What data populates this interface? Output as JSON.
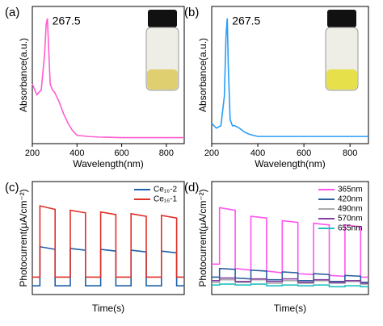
{
  "chart_data": [
    {
      "type": "line",
      "label": "(a)",
      "x_label": "Wavelength(nm)",
      "y_label": "Absorbance(a.u.)",
      "annotation": "267.5",
      "x": [
        200,
        220,
        240,
        255,
        262,
        267.5,
        272,
        280,
        290,
        300,
        320,
        340,
        360,
        380,
        400,
        450,
        500,
        600,
        700,
        800,
        880
      ],
      "series": [
        {
          "color": "#ff5ccf",
          "values": [
            0.45,
            0.36,
            0.4,
            0.7,
            0.95,
            1.0,
            0.8,
            0.45,
            0.4,
            0.38,
            0.3,
            0.2,
            0.12,
            0.06,
            0.02,
            0.01,
            0.005,
            0,
            0,
            0,
            0
          ]
        }
      ],
      "xlim": [
        200,
        880
      ],
      "ylim": [
        -0.05,
        1.1
      ],
      "xticks": [
        200,
        400,
        600,
        800
      ]
    },
    {
      "type": "line",
      "label": "(b)",
      "x_label": "Wavelength(nm)",
      "y_label": "Absorbance(a.u.)",
      "annotation": "267.5",
      "x": [
        200,
        220,
        240,
        255,
        262,
        267.5,
        272,
        280,
        290,
        300,
        320,
        340,
        360,
        380,
        400,
        450,
        500,
        600,
        700,
        800,
        880
      ],
      "series": [
        {
          "color": "#2a9df4",
          "values": [
            0.12,
            0.08,
            0.1,
            0.35,
            0.85,
            1.0,
            0.6,
            0.15,
            0.1,
            0.1,
            0.08,
            0.05,
            0.03,
            0.02,
            0.01,
            0.01,
            0.01,
            0.01,
            0.01,
            0.01,
            0.01
          ]
        }
      ],
      "xlim": [
        200,
        880
      ],
      "ylim": [
        -0.05,
        1.1
      ],
      "xticks": [
        200,
        400,
        600,
        800
      ]
    },
    {
      "type": "line",
      "label": "(c)",
      "x_label": "Time(s)",
      "y_label": "Photocurrent(μA/cm⁻²)",
      "legend": "upper right",
      "x": [
        0,
        5,
        5,
        15,
        15,
        25,
        25,
        35,
        35,
        45,
        45,
        55,
        55,
        65,
        65,
        75,
        75,
        85,
        85,
        95,
        95,
        100
      ],
      "series": [
        {
          "name": "Ce₁₆-2",
          "color": "#1f5fa8",
          "values": [
            0.1,
            0.1,
            0.55,
            0.52,
            0.1,
            0.1,
            0.53,
            0.51,
            0.1,
            0.1,
            0.52,
            0.5,
            0.1,
            0.1,
            0.51,
            0.49,
            0.1,
            0.1,
            0.5,
            0.48,
            0.1,
            0.1
          ]
        },
        {
          "name": "Ce₁₆-1",
          "color": "#e0302a",
          "values": [
            0.2,
            0.2,
            1.02,
            0.98,
            0.2,
            0.2,
            0.97,
            0.94,
            0.2,
            0.2,
            0.95,
            0.92,
            0.2,
            0.2,
            0.93,
            0.9,
            0.2,
            0.2,
            0.91,
            0.88,
            0.2,
            0.2
          ]
        }
      ],
      "xlim": [
        0,
        100
      ],
      "ylim": [
        0,
        1.3
      ]
    },
    {
      "type": "line",
      "label": "(d)",
      "x_label": "Time(s)",
      "y_label": "Photocurrent(μA/cm⁻²)",
      "legend": "upper right",
      "x": [
        0,
        5,
        5,
        15,
        15,
        25,
        25,
        35,
        35,
        45,
        45,
        55,
        55,
        65,
        65,
        75,
        75,
        85,
        85,
        95,
        95,
        100
      ],
      "series": [
        {
          "name": "365nm",
          "color": "#ff55ee",
          "values": [
            0.35,
            0.35,
            1.0,
            0.97,
            0.3,
            0.28,
            0.9,
            0.88,
            0.27,
            0.25,
            0.85,
            0.83,
            0.24,
            0.23,
            0.82,
            0.8,
            0.22,
            0.21,
            0.8,
            0.78,
            0.2,
            0.2
          ]
        },
        {
          "name": "420nm",
          "color": "#2b5f9e",
          "values": [
            0.2,
            0.2,
            0.3,
            0.29,
            0.19,
            0.18,
            0.28,
            0.27,
            0.17,
            0.17,
            0.26,
            0.25,
            0.16,
            0.16,
            0.24,
            0.23,
            0.15,
            0.15,
            0.22,
            0.21,
            0.14,
            0.14
          ]
        },
        {
          "name": "490nm",
          "color": "#aaaaaa",
          "values": [
            0.14,
            0.14,
            0.17,
            0.17,
            0.14,
            0.14,
            0.17,
            0.17,
            0.13,
            0.13,
            0.16,
            0.16,
            0.13,
            0.13,
            0.16,
            0.16,
            0.13,
            0.13,
            0.15,
            0.15,
            0.12,
            0.12
          ]
        },
        {
          "name": "570nm",
          "color": "#8040a0",
          "values": [
            0.16,
            0.16,
            0.19,
            0.19,
            0.15,
            0.15,
            0.18,
            0.18,
            0.15,
            0.15,
            0.18,
            0.18,
            0.14,
            0.14,
            0.17,
            0.17,
            0.14,
            0.14,
            0.16,
            0.16,
            0.13,
            0.13
          ]
        },
        {
          "name": "655nm",
          "color": "#20c0c0",
          "values": [
            0.11,
            0.11,
            0.12,
            0.12,
            0.11,
            0.11,
            0.12,
            0.12,
            0.1,
            0.1,
            0.11,
            0.11,
            0.1,
            0.1,
            0.11,
            0.11,
            0.09,
            0.09,
            0.1,
            0.1,
            0.09,
            0.09
          ]
        }
      ],
      "xlim": [
        0,
        100
      ],
      "ylim": [
        0,
        1.3
      ]
    }
  ]
}
